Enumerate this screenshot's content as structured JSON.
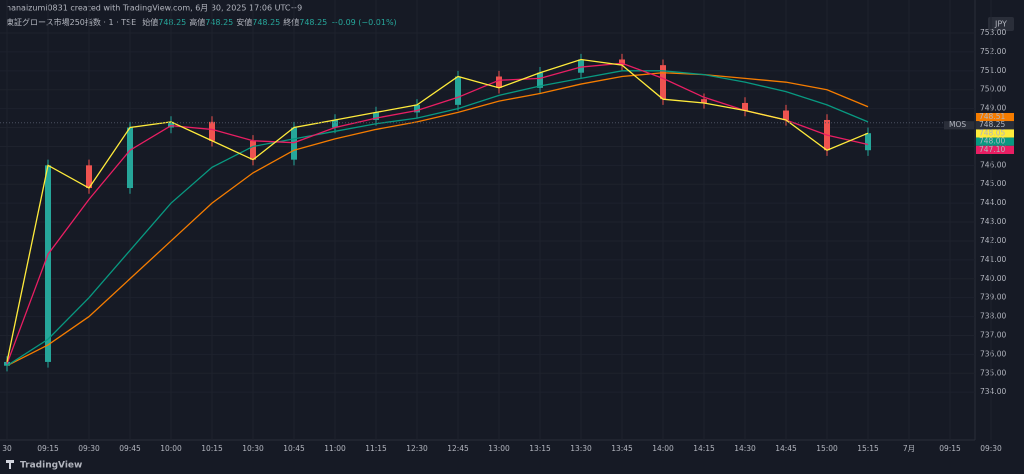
{
  "header": {
    "credit": "hanaizumi0831 created with TradingView.com, 6月 30, 2025 17:06 UTC+9",
    "symbol": "東証グロース市場250指数 · 1 · TSE",
    "ohlc": [
      {
        "label": "始値",
        "value": "748.25"
      },
      {
        "label": "高値",
        "value": "748.25"
      },
      {
        "label": "安値",
        "value": "748.25"
      },
      {
        "label": "終値",
        "value": "748.25"
      }
    ],
    "change": "−0.09 (−0.01%)",
    "currency": "JPY",
    "brand": "TradingView"
  },
  "chart_data": {
    "type": "candlestick",
    "categories": [
      "30",
      "09:15",
      "09:30",
      "09:45",
      "10:00",
      "10:15",
      "10:30",
      "10:45",
      "11:00",
      "11:15",
      "12:30",
      "12:45",
      "13:00",
      "13:15",
      "13:30",
      "13:45",
      "14:00",
      "14:15",
      "14:30",
      "14:45",
      "15:00",
      "15:15",
      "7月",
      "09:15",
      "09:30"
    ],
    "candles": {
      "up_color": "#26a69a",
      "down_color": "#ef5350",
      "open": [
        735.4,
        735.6,
        746.0,
        744.8,
        748.0,
        748.3,
        747.3,
        746.3,
        748.0,
        748.4,
        748.8,
        749.2,
        750.7,
        750.1,
        750.9,
        751.6,
        751.3,
        749.5,
        749.3,
        748.9,
        748.4,
        746.8,
        null,
        null,
        null
      ],
      "high": [
        735.9,
        746.3,
        746.3,
        748.3,
        748.6,
        748.6,
        747.6,
        748.3,
        748.7,
        749.1,
        749.5,
        751.0,
        751.0,
        751.2,
        751.9,
        751.9,
        751.6,
        749.8,
        749.6,
        749.2,
        748.7,
        748.0,
        null,
        null,
        null
      ],
      "low": [
        735.1,
        735.3,
        744.5,
        744.5,
        747.7,
        747.0,
        746.0,
        746.0,
        747.7,
        748.1,
        748.5,
        748.9,
        749.8,
        749.8,
        750.6,
        751.0,
        749.2,
        749.0,
        748.6,
        748.1,
        746.5,
        746.5,
        null,
        null,
        null
      ],
      "close": [
        735.6,
        746.0,
        744.8,
        748.0,
        748.3,
        747.3,
        746.3,
        748.0,
        748.4,
        748.8,
        749.2,
        750.7,
        750.1,
        750.9,
        751.6,
        751.3,
        749.5,
        749.3,
        748.9,
        748.4,
        746.8,
        747.7,
        null,
        null,
        null
      ]
    },
    "series": [
      {
        "color": "#f57c00",
        "values": [
          735.4,
          736.5,
          738.0,
          740.0,
          742.0,
          744.0,
          745.6,
          746.8,
          747.4,
          747.9,
          748.3,
          748.8,
          749.4,
          749.8,
          750.3,
          750.7,
          750.9,
          750.8,
          750.6,
          750.4,
          750.0,
          749.1,
          null,
          null,
          null
        ]
      },
      {
        "color": "#089981",
        "values": [
          735.4,
          736.8,
          739.0,
          741.5,
          744.0,
          745.9,
          747.0,
          747.4,
          747.8,
          748.2,
          748.5,
          749.0,
          749.7,
          750.2,
          750.6,
          751.0,
          751.0,
          750.8,
          750.4,
          749.9,
          749.2,
          748.3,
          null,
          null,
          null
        ]
      },
      {
        "color": "#e91e63",
        "values": [
          735.5,
          741.3,
          744.2,
          746.8,
          748.1,
          747.9,
          747.3,
          747.2,
          748.0,
          748.5,
          748.9,
          749.6,
          750.5,
          750.6,
          751.2,
          751.4,
          750.6,
          749.6,
          748.9,
          748.4,
          747.6,
          747.1,
          null,
          null,
          null
        ]
      },
      {
        "color": "#ffeb3b",
        "values": [
          735.6,
          746.0,
          744.8,
          748.0,
          748.3,
          747.3,
          746.3,
          748.0,
          748.4,
          748.8,
          749.2,
          750.7,
          750.1,
          750.9,
          751.6,
          751.3,
          749.5,
          749.3,
          748.9,
          748.4,
          746.8,
          747.7,
          null,
          null,
          null
        ]
      }
    ],
    "ylim": [
      731.47,
      753.16
    ],
    "yticks": [
      {
        "value": 734,
        "label": "734.00"
      },
      {
        "value": 735,
        "label": "735.00"
      },
      {
        "value": 736,
        "label": "736.00"
      },
      {
        "value": 737,
        "label": "737.00"
      },
      {
        "value": 738,
        "label": "738.00"
      },
      {
        "value": 739,
        "label": "739.00"
      },
      {
        "value": 740,
        "label": "740.00"
      },
      {
        "value": 741,
        "label": "741.00"
      },
      {
        "value": 742,
        "label": "742.00"
      },
      {
        "value": 743,
        "label": "743.00"
      },
      {
        "value": 744,
        "label": "744.00"
      },
      {
        "value": 745,
        "label": "745.00"
      },
      {
        "value": 746,
        "label": "746.00"
      },
      {
        "value": 747,
        "label": "747.00"
      },
      {
        "value": 748,
        "label": "748.00"
      },
      {
        "value": 749,
        "label": "749.00"
      },
      {
        "value": 750,
        "label": "750.00"
      },
      {
        "value": 751,
        "label": "751.00"
      },
      {
        "value": 752,
        "label": "752.00"
      },
      {
        "value": 753,
        "label": "753.00"
      }
    ],
    "grid": true,
    "price_tags": [
      {
        "value": 748.51,
        "color": "#f57c00"
      },
      {
        "value": 748.25,
        "label": "748.25",
        "name": "MOS",
        "color": "#2a2e39"
      },
      {
        "value": 748.05,
        "color": "#ffeb3b"
      },
      {
        "value": 748,
        "label": "748.00",
        "color": "#089981"
      },
      {
        "value": 747.1,
        "label": "747.10",
        "color": "#e91e63"
      }
    ]
  }
}
